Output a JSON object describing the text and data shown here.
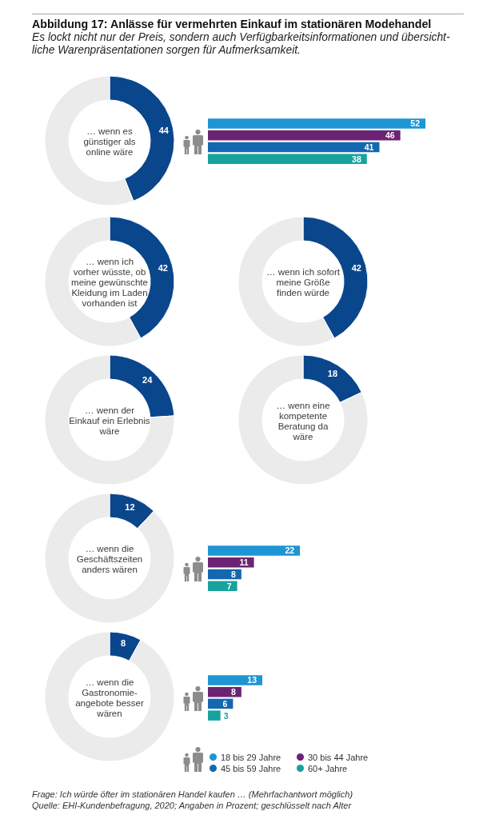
{
  "chart_data": [
    {
      "type": "other",
      "title": "Abbildung 17: Anlässe für vermehrten Einkauf im stationären Modehandel",
      "subtitle": "Es lockt nicht nur der Preis, sondern auch Verfügbarkeitsinformationen und übersicht-liche Warenpräsentationen sorgen für Aufmerksamkeit."
    },
    {
      "type": "donut",
      "title": "… wenn es\ngünstiger als\nonline wäre",
      "categories": [
        null,
        null
      ],
      "values": [
        44,
        56
      ],
      "colors": [
        "#0a468c",
        "#ebebeb"
      ],
      "value_labels": [
        "44",
        null
      ]
    },
    {
      "type": "bar",
      "orientation": "horizontal",
      "categories": [
        null
      ],
      "series": [
        {
          "color": "#1e95d4",
          "values": [
            52
          ]
        },
        {
          "color": "#6c2373",
          "values": [
            46
          ]
        },
        {
          "color": "#1468b0",
          "values": [
            41
          ]
        },
        {
          "color": "#18a29e",
          "values": [
            38
          ]
        }
      ],
      "data_labels": true
    },
    {
      "type": "donut",
      "title": "… wenn ich\nvorher wüsste, ob\nmeine gewünschte\nKleidung im Laden\nvorhanden ist",
      "categories": [
        null,
        null
      ],
      "values": [
        42,
        58
      ],
      "colors": [
        "#0a468c",
        "#ebebeb"
      ],
      "value_labels": [
        "42",
        null
      ]
    },
    {
      "type": "donut",
      "title": "… wenn ich sofort\nmeine Größe\nfinden würde",
      "categories": [
        null,
        null
      ],
      "values": [
        42,
        58
      ],
      "colors": [
        "#0a468c",
        "#ebebeb"
      ],
      "value_labels": [
        "42",
        null
      ]
    },
    {
      "type": "donut",
      "title": "… wenn der\nEinkauf ein Erlebnis\nwäre",
      "categories": [
        null,
        null
      ],
      "values": [
        24,
        76
      ],
      "colors": [
        "#0a468c",
        "#ebebeb"
      ],
      "value_labels": [
        "24",
        null
      ]
    },
    {
      "type": "donut",
      "title": "… wenn eine\nkompetente\nBeratung da\nwäre",
      "categories": [
        null,
        null
      ],
      "values": [
        18,
        82
      ],
      "colors": [
        "#0a468c",
        "#ebebeb"
      ],
      "value_labels": [
        "18",
        null
      ]
    },
    {
      "type": "donut",
      "title": "… wenn die\nGeschäftszeiten\nanders wären",
      "categories": [
        null,
        null
      ],
      "values": [
        12,
        88
      ],
      "colors": [
        "#0a468c",
        "#ebebeb"
      ],
      "value_labels": [
        "12",
        null
      ]
    },
    {
      "type": "bar",
      "orientation": "horizontal",
      "categories": [
        null
      ],
      "series": [
        {
          "color": "#1e95d4",
          "values": [
            22
          ]
        },
        {
          "color": "#6c2373",
          "values": [
            11
          ]
        },
        {
          "color": "#1468b0",
          "values": [
            8
          ]
        },
        {
          "color": "#18a29e",
          "values": [
            7
          ]
        }
      ],
      "data_labels": true
    },
    {
      "type": "donut",
      "title": "… wenn die\nGastronomie-\nangebote besser\nwären",
      "categories": [
        null,
        null
      ],
      "values": [
        8,
        92
      ],
      "colors": [
        "#0a468c",
        "#ebebeb"
      ],
      "value_labels": [
        "8",
        null
      ]
    },
    {
      "type": "bar",
      "orientation": "horizontal",
      "categories": [
        null
      ],
      "series": [
        {
          "name": "18 bis 29 Jahre",
          "color": "#1e95d4",
          "values": [
            13
          ]
        },
        {
          "name": "30 bis 44 Jahre",
          "color": "#6c2373",
          "values": [
            8
          ]
        },
        {
          "name": "45 bis 59 Jahre",
          "color": "#1468b0",
          "values": [
            6
          ]
        },
        {
          "name": "60+ Jahre",
          "color": "#18a29e",
          "values": [
            3
          ]
        }
      ],
      "data_labels": true,
      "legend": "bottom"
    },
    {
      "type": "other",
      "annotations": [
        "Frage: Ich würde öfter im stationären Handel kaufen … (Mehrfachantwort möglich)",
        "Quelle: EHI-Kundenbefragung, 2020; Angaben in Prozent; geschlüsselt nach Alter"
      ]
    }
  ]
}
